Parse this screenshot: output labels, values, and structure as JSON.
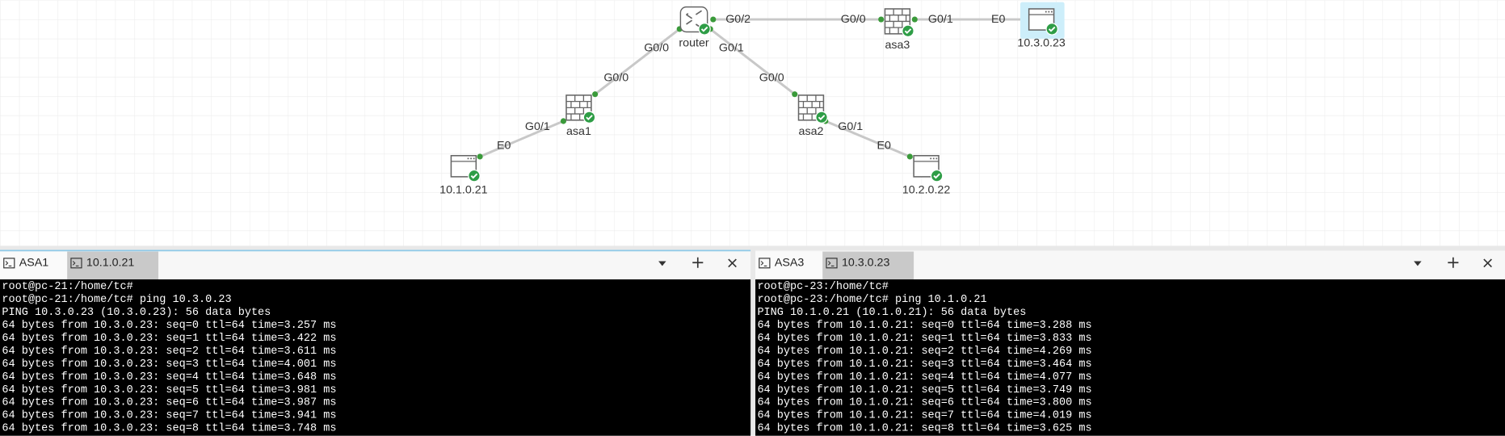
{
  "topology": {
    "nodes": [
      {
        "label": "router"
      },
      {
        "label": "asa3"
      },
      {
        "label": "10.3.0.23"
      },
      {
        "label": "asa1"
      },
      {
        "label": "asa2"
      },
      {
        "label": "10.1.0.21"
      },
      {
        "label": "10.2.0.22"
      }
    ],
    "links": [
      {
        "a": "G0/2",
        "b": "G0/0"
      },
      {
        "a": "G0/1",
        "b": "E0"
      },
      {
        "a": "G0/0",
        "b": "G0/0"
      },
      {
        "a": "G0/1",
        "b": "E0"
      },
      {
        "a": "G0/1",
        "b": "G0/0"
      },
      {
        "a": "G0/1",
        "b": "E0"
      }
    ]
  },
  "terminals": [
    {
      "tabs": [
        "ASA1",
        "10.1.0.21"
      ],
      "lines": [
        "root@pc-21:/home/tc#",
        "root@pc-21:/home/tc# ping 10.3.0.23",
        "PING 10.3.0.23 (10.3.0.23): 56 data bytes",
        "64 bytes from 10.3.0.23: seq=0 ttl=64 time=3.257 ms",
        "64 bytes from 10.3.0.23: seq=1 ttl=64 time=3.422 ms",
        "64 bytes from 10.3.0.23: seq=2 ttl=64 time=3.611 ms",
        "64 bytes from 10.3.0.23: seq=3 ttl=64 time=4.001 ms",
        "64 bytes from 10.3.0.23: seq=4 ttl=64 time=3.648 ms",
        "64 bytes from 10.3.0.23: seq=5 ttl=64 time=3.981 ms",
        "64 bytes from 10.3.0.23: seq=6 ttl=64 time=3.987 ms",
        "64 bytes from 10.3.0.23: seq=7 ttl=64 time=3.941 ms",
        "64 bytes from 10.3.0.23: seq=8 ttl=64 time=3.748 ms"
      ]
    },
    {
      "tabs": [
        "ASA3",
        "10.3.0.23"
      ],
      "lines": [
        "root@pc-23:/home/tc#",
        "root@pc-23:/home/tc# ping 10.1.0.21",
        "PING 10.1.0.21 (10.1.0.21): 56 data bytes",
        "64 bytes from 10.1.0.21: seq=0 ttl=64 time=3.288 ms",
        "64 bytes from 10.1.0.21: seq=1 ttl=64 time=3.833 ms",
        "64 bytes from 10.1.0.21: seq=2 ttl=64 time=4.269 ms",
        "64 bytes from 10.1.0.21: seq=3 ttl=64 time=3.464 ms",
        "64 bytes from 10.1.0.21: seq=4 ttl=64 time=4.077 ms",
        "64 bytes from 10.1.0.21: seq=5 ttl=64 time=3.749 ms",
        "64 bytes from 10.1.0.21: seq=6 ttl=64 time=3.800 ms",
        "64 bytes from 10.1.0.21: seq=7 ttl=64 time=4.019 ms",
        "64 bytes from 10.1.0.21: seq=8 ttl=64 time=3.625 ms"
      ]
    }
  ]
}
